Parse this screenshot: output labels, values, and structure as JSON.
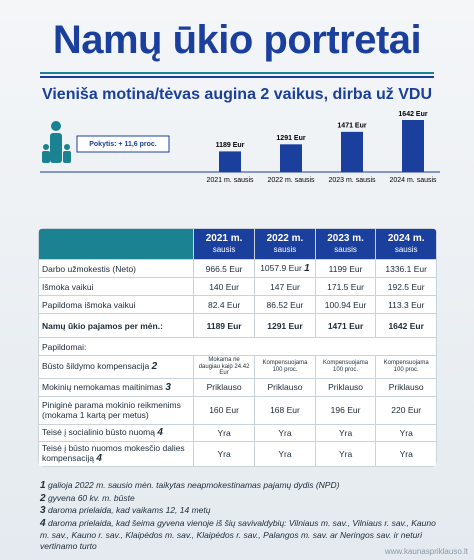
{
  "header": {
    "title": "Namų ūkio portretai",
    "subtitle": "Vieniša motina/tėvas augina 2 vaikus, dirba už  VDU"
  },
  "chart_data": {
    "type": "bar",
    "annotation": "Pokytis: + 11,6 proc.",
    "categories": [
      "2021 m. sausis",
      "2022 m. sausis",
      "2023 m. sausis",
      "2024 m. sausis"
    ],
    "values": [
      1189,
      1291,
      1471,
      1642
    ],
    "value_labels": [
      "1189 Eur",
      "1291 Eur",
      "1471 Eur",
      "1642 Eur"
    ],
    "color": "#1b3f9c"
  },
  "table": {
    "columns": [
      {
        "year": "2021 m.",
        "month": "sausis"
      },
      {
        "year": "2022 m.",
        "month": "sausis"
      },
      {
        "year": "2023 m.",
        "month": "sausis"
      },
      {
        "year": "2024 m.",
        "month": "sausis"
      }
    ],
    "rows": [
      {
        "label": "Darbo užmokestis (Neto)",
        "cells": [
          "966.5 Eur",
          {
            "text": "1057.9 Eur",
            "note": "1"
          },
          "1199 Eur",
          "1336.1 Eur"
        ]
      },
      {
        "label": "Išmoka vaikui",
        "cells": [
          "140 Eur",
          "147 Eur",
          "171.5 Eur",
          "192.5 Eur"
        ]
      },
      {
        "label": "Papildoma išmoka vaikui",
        "cells": [
          "82.4 Eur",
          "86.52 Eur",
          "100.94 Eur",
          "113.3 Eur"
        ]
      },
      {
        "label": "Namų ūkio pajamos per mėn.:",
        "bold": true,
        "cells": [
          "1189 Eur",
          "1291 Eur",
          "1471 Eur",
          "1642 Eur"
        ]
      },
      {
        "section": "Papildomai:"
      },
      {
        "label": "Būsto šildymo kompensacija",
        "note": "2",
        "small": true,
        "cells": [
          "Mokama ne daugiau kaip 24.42 Eur",
          "Kompensuojama 100 proc.",
          "Kompensuojama 100 proc.",
          "Kompensuojama 100 proc."
        ]
      },
      {
        "label": "Mokinių nemokamas maitinimas",
        "note": "3",
        "cells": [
          "Priklauso",
          "Priklauso",
          "Priklauso",
          "Priklauso"
        ]
      },
      {
        "label": "Piniginė parama mokinio reikmenims (mokama 1 kartą per metus)",
        "cells": [
          "160 Eur",
          "168 Eur",
          "196 Eur",
          "220 Eur"
        ]
      },
      {
        "label": "Teisė į socialinio būsto nuomą",
        "note": "4",
        "cells": [
          "Yra",
          "Yra",
          "Yra",
          "Yra"
        ]
      },
      {
        "label": "Teisė į būsto nuomos mokesčio dalies kompensaciją",
        "note": "4",
        "cells": [
          "Yra",
          "Yra",
          "Yra",
          "Yra"
        ]
      }
    ]
  },
  "footnotes": [
    {
      "marker": "1",
      "text": "galioja 2022 m. sausio mėn. taikytas neapmokestinamas pajamų dydis (NPD)"
    },
    {
      "marker": "2",
      "text": "gyvena 60 kv. m. būste"
    },
    {
      "marker": "3",
      "text": "daroma prielaida, kad vaikams 12, 14 metų"
    },
    {
      "marker": "4",
      "text": "daroma prielaida, kad šeima gyvena vienoje iš šių savivaldybių: Vilniaus m. sav., Vilniaus r. sav., Kauno m. sav., Kauno r. sav., Klaipėdos m. sav., Klaipėdos r. sav., Palangos m. sav. ar Neringos sav. ir neturi vertinamo turto"
    }
  ],
  "source": "www.kaunaspriklauso.lt"
}
